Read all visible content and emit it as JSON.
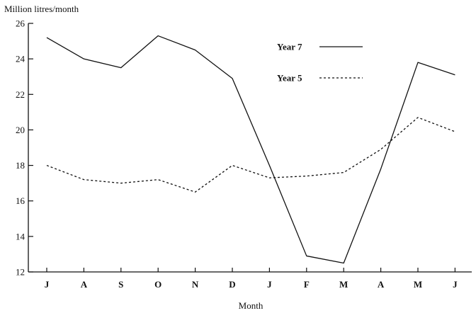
{
  "chart_data": {
    "type": "line",
    "ylabel": "Million litres/month",
    "xlabel": "Month",
    "categories": [
      "J",
      "A",
      "S",
      "O",
      "N",
      "D",
      "J",
      "F",
      "M",
      "A",
      "M",
      "J"
    ],
    "ylim": [
      12,
      26
    ],
    "yticks": [
      12,
      14,
      16,
      18,
      20,
      22,
      24,
      26
    ],
    "legend_position": "top-right",
    "series": [
      {
        "name": "Year 7",
        "style": "solid",
        "values": [
          25.2,
          24.0,
          23.5,
          25.3,
          24.5,
          22.9,
          18.0,
          12.9,
          12.5,
          17.8,
          23.8,
          23.1
        ]
      },
      {
        "name": "Year 5",
        "style": "dotted",
        "values": [
          18.0,
          17.2,
          17.0,
          17.2,
          16.5,
          18.0,
          17.3,
          17.4,
          17.6,
          18.9,
          20.7,
          19.9
        ]
      }
    ],
    "colors": {
      "line": "#111111",
      "axis": "#111111"
    }
  }
}
